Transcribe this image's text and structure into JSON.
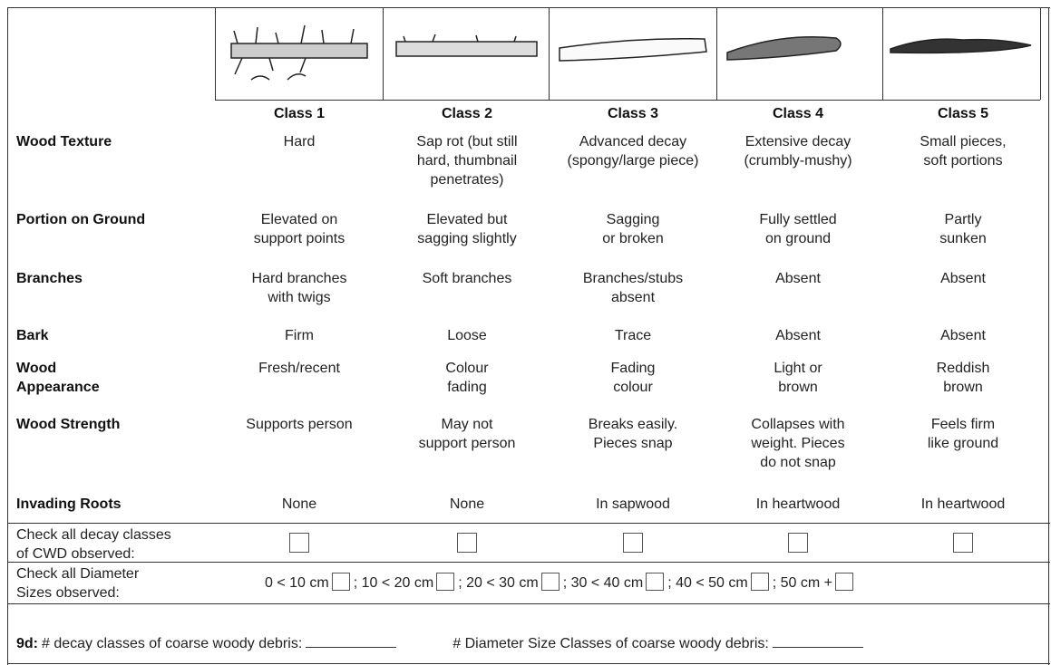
{
  "header": {
    "class_labels": [
      "Class 1",
      "Class 2",
      "Class 3",
      "Class 4",
      "Class 5"
    ]
  },
  "table": {
    "rows": [
      {
        "label": "Wood Texture",
        "cells": [
          "Hard",
          "Sap rot (but still\nhard, thumbnail\npenetrates)",
          "Advanced decay\n(spongy/large piece)",
          "Extensive decay\n(crumbly-mushy)",
          "Small pieces,\nsoft portions"
        ]
      },
      {
        "label": "Portion on Ground",
        "cells": [
          "Elevated on\nsupport points",
          "Elevated but\nsagging slightly",
          "Sagging\nor broken",
          "Fully settled\non ground",
          "Partly\nsunken"
        ]
      },
      {
        "label": "Branches",
        "cells": [
          "Hard branches\nwith twigs",
          "Soft branches",
          "Branches/stubs\nabsent",
          "Absent",
          "Absent"
        ]
      },
      {
        "label": "Bark",
        "cells": [
          "Firm",
          "Loose",
          "Trace",
          "Absent",
          "Absent"
        ]
      },
      {
        "label": "Wood\nAppearance",
        "cells": [
          "Fresh/recent",
          "Colour\nfading",
          "Fading\ncolour",
          "Light or\nbrown",
          "Reddish\nbrown"
        ]
      },
      {
        "label": "Wood Strength",
        "cells": [
          "Supports person",
          "May not\nsupport person",
          "Breaks easily.\nPieces snap",
          "Collapses with\nweight. Pieces\ndo not snap",
          "Feels firm\nlike ground"
        ]
      },
      {
        "label": "Invading Roots",
        "cells": [
          "None",
          "None",
          "In sapwood",
          "In heartwood",
          "In heartwood"
        ]
      }
    ]
  },
  "decay_check": {
    "label": "Check all decay classes\nof CWD observed:"
  },
  "diameter_check": {
    "label": "Check all Diameter\nSizes observed:",
    "options": [
      "0 < 10 cm",
      "; 10 < 20 cm",
      "; 20 < 30 cm",
      "; 30 < 40 cm",
      "; 40 < 50 cm",
      "; 50 cm +"
    ]
  },
  "footer": {
    "id": "9d:",
    "decay_label": "# decay classes of coarse woody debris:",
    "diameter_label": "# Diameter Size Classes of coarse woody debris:"
  }
}
